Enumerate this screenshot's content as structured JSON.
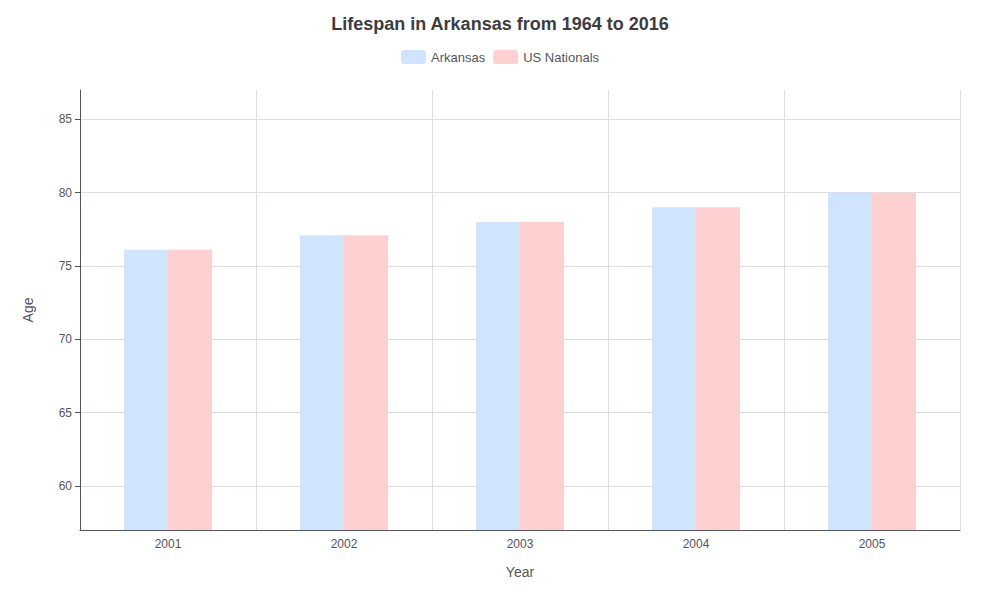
{
  "chart_data": {
    "type": "bar",
    "title": "Lifespan in Arkansas from 1964 to 2016",
    "xlabel": "Year",
    "ylabel": "Age",
    "categories": [
      "2001",
      "2002",
      "2003",
      "2004",
      "2005"
    ],
    "series": [
      {
        "name": "Arkansas",
        "color": "#d0e4ff",
        "values": [
          76.1,
          77.1,
          78.0,
          79.0,
          80.0
        ]
      },
      {
        "name": "US Nationals",
        "color": "#ffd0d0",
        "values": [
          76.1,
          77.1,
          78.0,
          79.0,
          80.0
        ]
      }
    ],
    "ylim": [
      57,
      87
    ],
    "yticks": [
      60,
      65,
      70,
      75,
      80,
      85
    ],
    "grid": true,
    "legend": "top"
  }
}
